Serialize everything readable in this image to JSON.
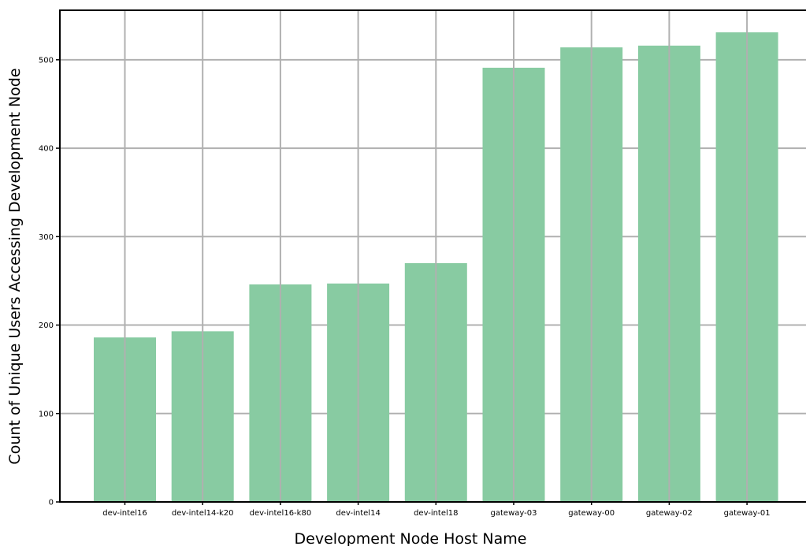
{
  "chart_data": {
    "type": "bar",
    "title": "",
    "xlabel": "Development Node Host Name",
    "ylabel": "Count of Unique Users Accessing Development Node",
    "categories": [
      "dev-intel16",
      "dev-intel14-k20",
      "dev-intel16-k80",
      "dev-intel14",
      "dev-intel18",
      "gateway-03",
      "gateway-00",
      "gateway-02",
      "gateway-01"
    ],
    "values": [
      186,
      193,
      246,
      247,
      270,
      491,
      514,
      516,
      531
    ],
    "ylim": [
      0,
      556
    ],
    "yticks": [
      0,
      100,
      200,
      300,
      400,
      500
    ],
    "grid": true,
    "bar_color": "#88cba2",
    "grid_color": "#b0b0b0"
  }
}
